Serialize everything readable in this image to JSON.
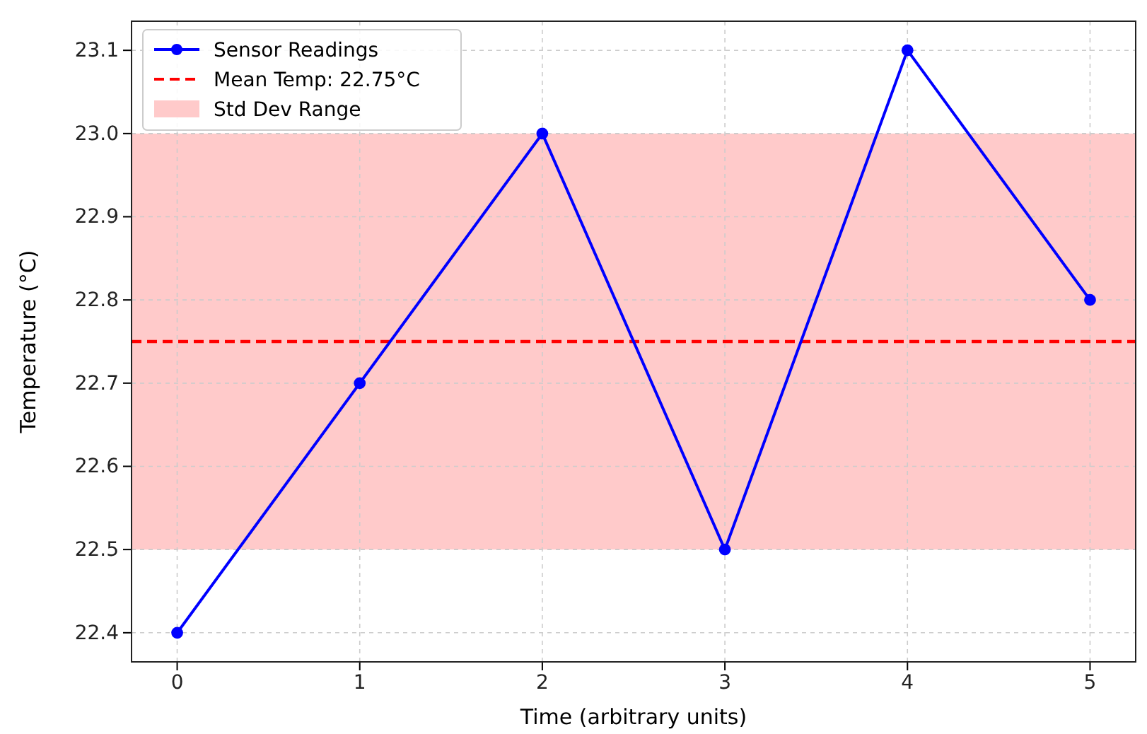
{
  "chart_data": {
    "type": "line",
    "xlabel": "Time (arbitrary units)",
    "ylabel": "Temperature (°C)",
    "x": [
      0,
      1,
      2,
      3,
      4,
      5
    ],
    "series": [
      {
        "name": "Sensor Readings",
        "color": "#0000ff",
        "values": [
          22.4,
          22.7,
          23.0,
          22.5,
          23.1,
          22.8
        ]
      }
    ],
    "xlim": [
      -0.25,
      5.25
    ],
    "xticks": [
      0,
      1,
      2,
      3,
      4,
      5
    ],
    "ylim": [
      22.365,
      23.135
    ],
    "yticks": [
      22.4,
      22.5,
      22.6,
      22.7,
      22.8,
      22.9,
      {
        "value": 23.0,
        "label": "23.0"
      },
      23.1
    ],
    "ref_lines": [
      {
        "axis": "y",
        "value": 22.75,
        "label": "Mean Temp: 22.75°C",
        "color": "#ff0000",
        "line_style": "dashed"
      }
    ],
    "bands": [
      {
        "axis": "y",
        "from": 22.5,
        "to": 23.0,
        "label": "Std Dev Range",
        "color": "#ffcaca"
      }
    ],
    "grid": true,
    "legend": "top left",
    "marker": "circle",
    "line_style": "solid"
  }
}
